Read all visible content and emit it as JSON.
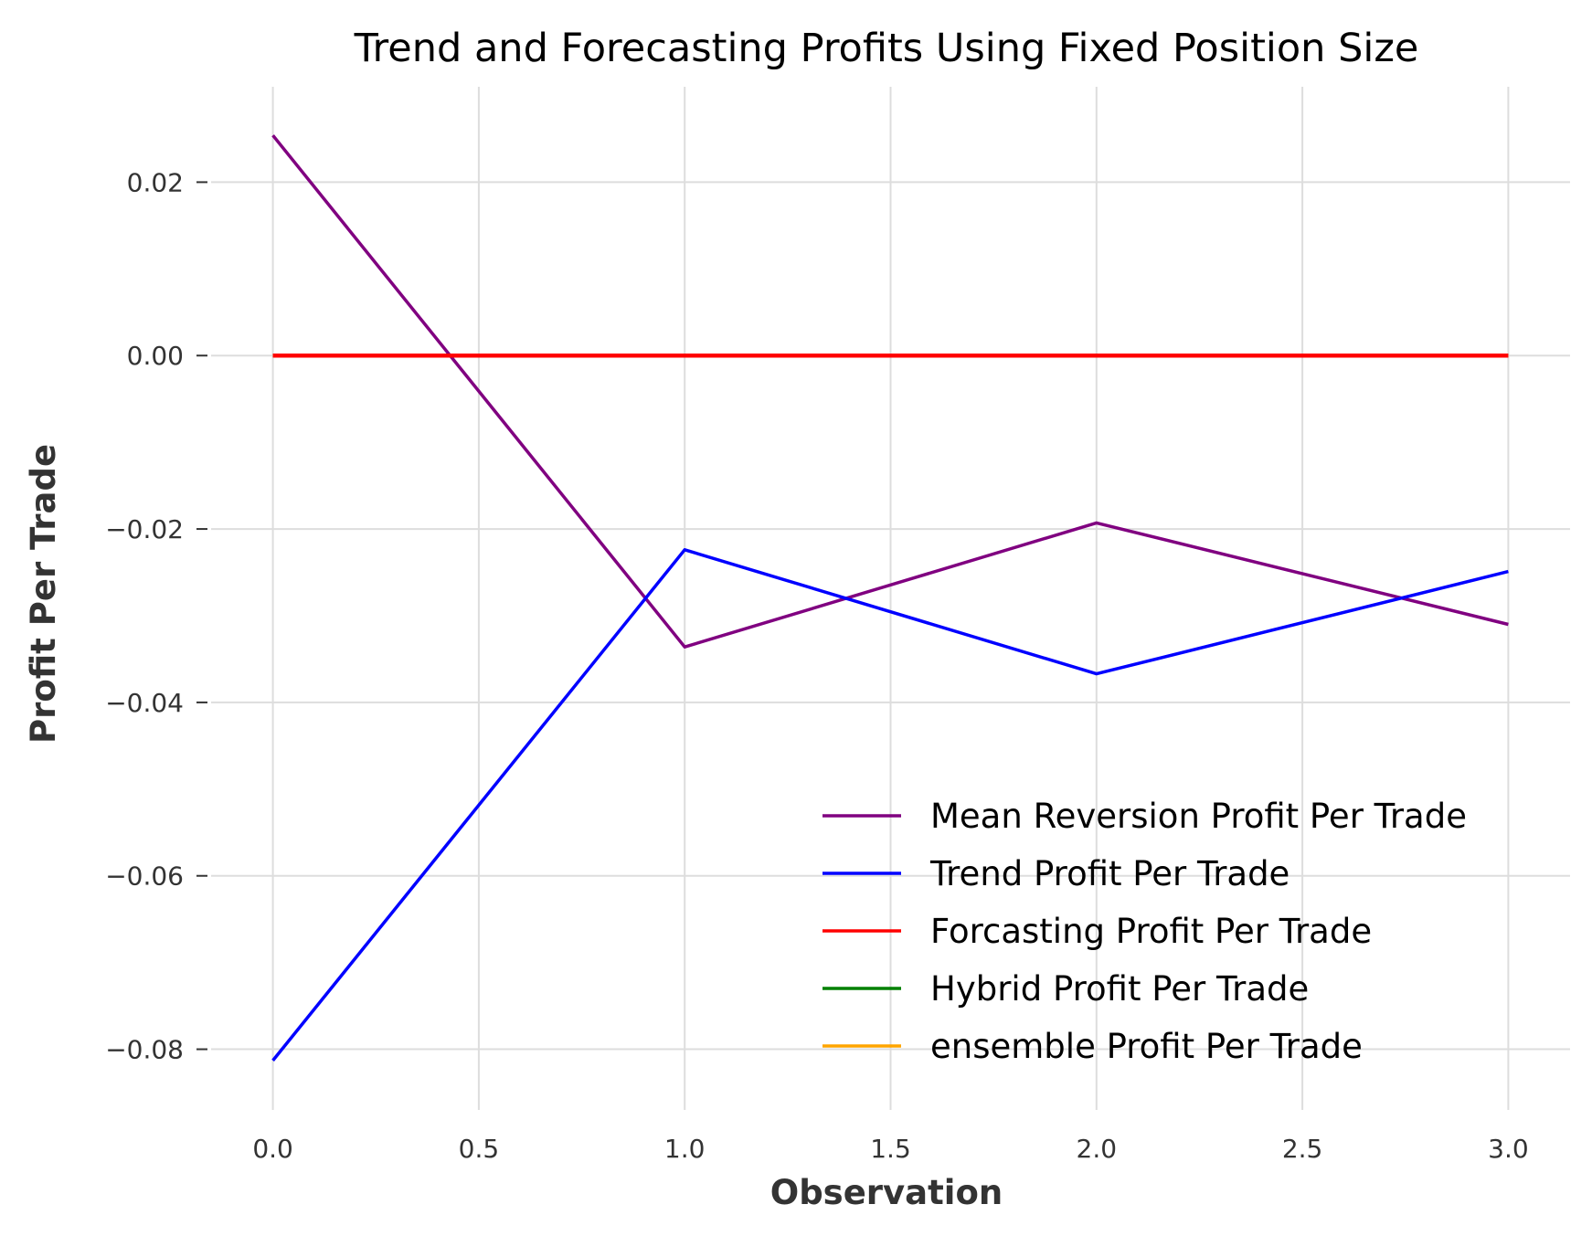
{
  "chart_data": {
    "type": "line",
    "title": "Trend and Forecasting Profits Using Fixed Position Size",
    "xlabel": "Observation",
    "ylabel": "Profit Per Trade",
    "xlim": [
      -0.15,
      3.15
    ],
    "ylim": [
      -0.087,
      0.031
    ],
    "xticks": [
      0.0,
      0.5,
      1.0,
      1.5,
      2.0,
      2.5,
      3.0
    ],
    "xtick_labels": [
      "0.0",
      "0.5",
      "1.0",
      "1.5",
      "2.0",
      "2.5",
      "3.0"
    ],
    "yticks": [
      0.02,
      0.0,
      -0.02,
      -0.04,
      -0.06,
      -0.08
    ],
    "ytick_labels": [
      "0.02",
      "0.00",
      "−0.02",
      "−0.04",
      "−0.06",
      "−0.08"
    ],
    "grid": true,
    "legend_position": "bottom-right",
    "x": [
      0,
      1,
      2,
      3
    ],
    "series": [
      {
        "name": "Mean Reversion Profit Per Trade",
        "color": "#800080",
        "values": [
          0.0254,
          -0.0336,
          -0.0193,
          -0.031
        ]
      },
      {
        "name": "Trend Profit Per Trade",
        "color": "#0000ff",
        "values": [
          -0.0813,
          -0.0224,
          -0.0367,
          -0.0249
        ]
      },
      {
        "name": "Forcasting Profit Per Trade",
        "color": "#ff0000",
        "values": [
          0.0,
          0.0,
          0.0,
          0.0
        ]
      },
      {
        "name": "Hybrid Profit Per Trade",
        "color": "#008000",
        "values": [
          0.0,
          0.0,
          0.0,
          0.0
        ]
      },
      {
        "name": "ensemble Profit Per Trade",
        "color": "#ffa500",
        "values": [
          0.0,
          0.0,
          0.0,
          0.0
        ]
      }
    ]
  }
}
